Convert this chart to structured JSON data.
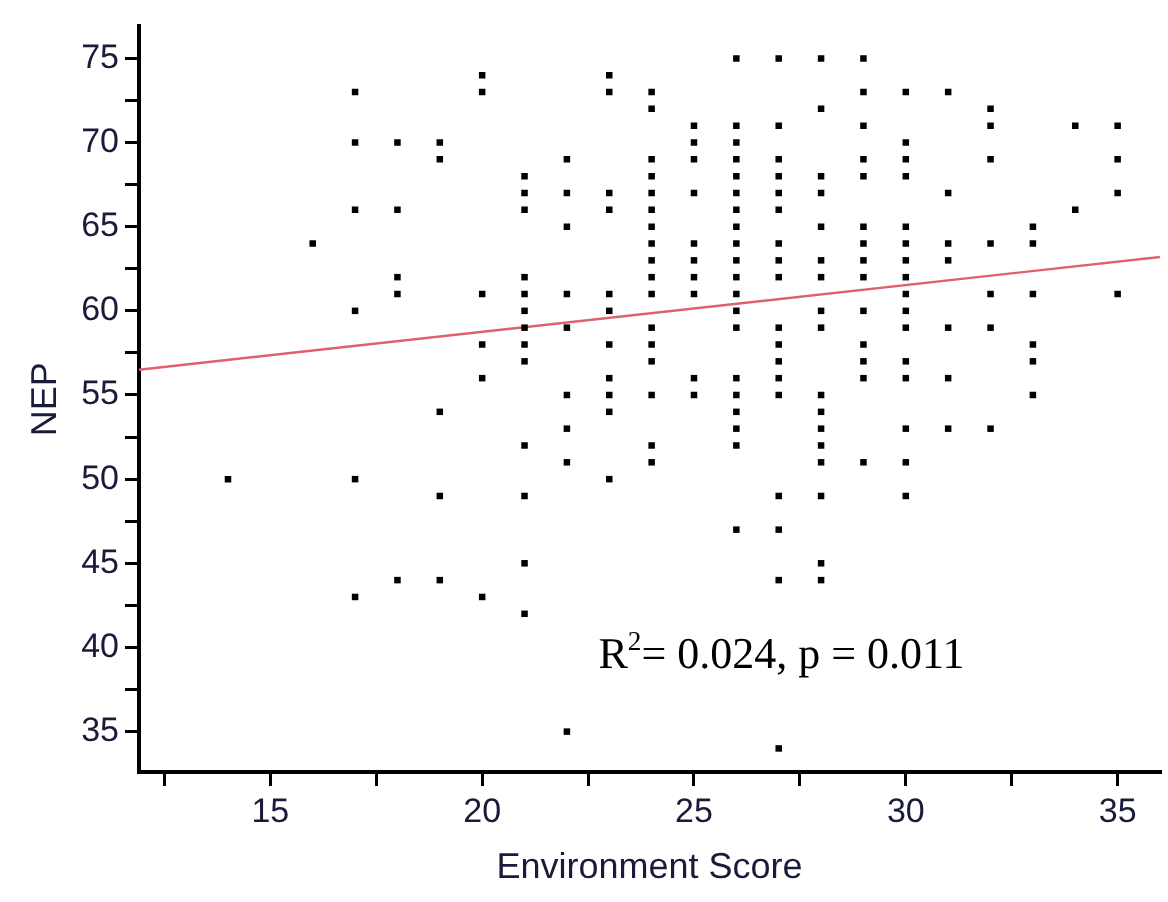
{
  "chart_data": {
    "type": "scatter",
    "xlabel": "Environment Score",
    "ylabel": "NEP",
    "marker": "square",
    "xlim": [
      11.9,
      36
    ],
    "ylim": [
      32.6,
      76.9
    ],
    "xticks": [
      {
        "value": 12.5,
        "label": null
      },
      15,
      {
        "value": 17.5,
        "label": null
      },
      20,
      {
        "value": 22.5,
        "label": null
      },
      25,
      {
        "value": 27.5,
        "label": null
      },
      30,
      {
        "value": 32.5,
        "label": null
      },
      35
    ],
    "yticks": [
      35,
      {
        "value": 37.5,
        "label": null
      },
      40,
      {
        "value": 42.5,
        "label": null
      },
      45,
      {
        "value": 47.5,
        "label": null
      },
      50,
      {
        "value": 52.5,
        "label": null
      },
      55,
      {
        "value": 57.5,
        "label": null
      },
      60,
      {
        "value": 62.5,
        "label": null
      },
      65,
      {
        "value": 67.5,
        "label": null
      },
      70,
      {
        "value": 72.5,
        "label": null
      },
      75
    ],
    "annotations": [
      "R$^{2}$= 0.024, p = 0.011"
    ],
    "series": [
      {
        "color": "#000000",
        "x": [
          14,
          16,
          17,
          17,
          17,
          17,
          17,
          17,
          18,
          18,
          18,
          18,
          18,
          19,
          19,
          19,
          19,
          19,
          20,
          20,
          20,
          20,
          20,
          20,
          21,
          21,
          21,
          21,
          21,
          21,
          21,
          21,
          21,
          21,
          21,
          21,
          21,
          22,
          22,
          22,
          22,
          22,
          22,
          22,
          22,
          22,
          23,
          23,
          23,
          23,
          23,
          23,
          23,
          23,
          23,
          23,
          23,
          24,
          24,
          24,
          24,
          24,
          24,
          24,
          24,
          24,
          24,
          24,
          24,
          24,
          24,
          24,
          24,
          24,
          25,
          25,
          25,
          25,
          25,
          25,
          25,
          25,
          25,
          25,
          26,
          26,
          26,
          26,
          26,
          26,
          26,
          26,
          26,
          26,
          26,
          26,
          26,
          26,
          26,
          26,
          26,
          26,
          26,
          26,
          27,
          27,
          27,
          27,
          27,
          27,
          27,
          27,
          27,
          27,
          27,
          27,
          27,
          27,
          27,
          27,
          27,
          27,
          28,
          28,
          28,
          28,
          28,
          28,
          28,
          28,
          28,
          28,
          28,
          28,
          28,
          28,
          28,
          28,
          28,
          29,
          29,
          29,
          29,
          29,
          29,
          29,
          29,
          29,
          29,
          29,
          29,
          29,
          29,
          30,
          30,
          30,
          30,
          30,
          30,
          30,
          30,
          30,
          30,
          30,
          30,
          30,
          30,
          30,
          30,
          31,
          31,
          31,
          31,
          31,
          31,
          31,
          32,
          32,
          32,
          32,
          32,
          32,
          32,
          33,
          33,
          33,
          33,
          33,
          33,
          34,
          34,
          35,
          35,
          35,
          35
        ],
        "values": [
          50,
          64,
          73,
          70,
          66,
          60,
          50,
          43,
          70,
          66,
          62,
          61,
          44,
          70,
          69,
          54,
          49,
          44,
          74,
          73,
          61,
          58,
          56,
          43,
          68,
          67,
          66,
          62,
          61,
          60,
          59,
          58,
          57,
          52,
          49,
          45,
          42,
          69,
          67,
          65,
          61,
          59,
          55,
          53,
          51,
          35,
          74,
          73,
          67,
          66,
          61,
          60,
          58,
          56,
          55,
          54,
          50,
          73,
          72,
          69,
          68,
          67,
          66,
          65,
          64,
          63,
          62,
          61,
          59,
          58,
          57,
          55,
          52,
          51,
          71,
          70,
          69,
          67,
          64,
          63,
          62,
          61,
          56,
          55,
          75,
          71,
          70,
          69,
          68,
          67,
          66,
          65,
          64,
          63,
          62,
          61,
          60,
          59,
          56,
          55,
          54,
          53,
          52,
          47,
          75,
          71,
          69,
          68,
          67,
          66,
          64,
          63,
          62,
          59,
          58,
          57,
          56,
          55,
          49,
          47,
          44,
          34,
          75,
          72,
          68,
          67,
          65,
          63,
          62,
          60,
          59,
          55,
          54,
          53,
          52,
          51,
          49,
          45,
          44,
          75,
          73,
          71,
          69,
          68,
          65,
          64,
          63,
          62,
          60,
          58,
          57,
          56,
          51,
          73,
          70,
          69,
          68,
          65,
          64,
          63,
          62,
          61,
          60,
          59,
          57,
          56,
          53,
          51,
          49,
          73,
          67,
          64,
          63,
          59,
          56,
          53,
          72,
          71,
          69,
          64,
          61,
          59,
          53,
          65,
          64,
          61,
          58,
          57,
          55,
          71,
          66,
          71,
          69,
          67,
          61
        ]
      },
      {
        "type": "line",
        "marker": "none",
        "color": "#e06070",
        "x": [
          11.9,
          36
        ],
        "values": [
          56.5,
          63.2
        ]
      }
    ]
  }
}
